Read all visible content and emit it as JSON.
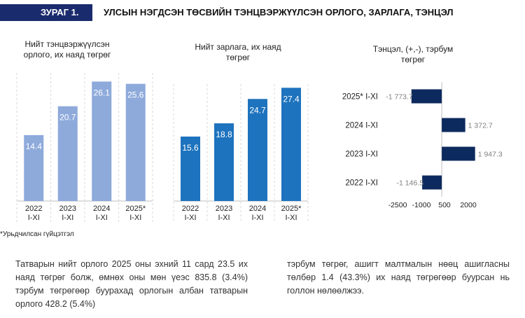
{
  "header": {
    "badge": "ЗУРАГ 1.",
    "title": "УЛСЫН НЭГДСЭН ТӨСВИЙН ТЭНЦВЭРЖҮҮЛСЭН ОРЛОГО, ЗАРЛАГА, ТЭНЦЭЛ"
  },
  "colors": {
    "badge_bg": "#1a2b6d",
    "revenue_bar": "#8eaadb",
    "expense_bar": "#1e73be",
    "balance_bar": "#0d2a5e",
    "value_label_light": "#ffffff",
    "gridline": "#d9d9d9"
  },
  "chart_data": [
    {
      "type": "bar",
      "title": "Нийт тэнцвэржүүлсэн орлого, их наяд төгрөг",
      "title_lines": [
        "Нийт тэнцвэржүүлсэн",
        "орлого, их наяд төгрөг"
      ],
      "categories": [
        "2022 I-XI",
        "2023 I-XI",
        "2024 I-XI",
        "2025* I-XI"
      ],
      "category_lines": [
        [
          "2022",
          "I-XI"
        ],
        [
          "2023",
          "I-XI"
        ],
        [
          "2024",
          "I-XI"
        ],
        [
          "2025*",
          "I-XI"
        ]
      ],
      "values": [
        14.4,
        20.7,
        26.1,
        25.6
      ],
      "value_labels": [
        "14.4",
        "20.7",
        "26.1",
        "25.6"
      ],
      "ylim": [
        0,
        28
      ]
    },
    {
      "type": "bar",
      "title": "Нийт зарлага, их наяд төгрөг",
      "title_lines": [
        "Нийт зарлага, их наяд",
        "төгрөг"
      ],
      "categories": [
        "2022 I-XI",
        "2023 I-XI",
        "2024 I-XI",
        "2025* I-XI"
      ],
      "category_lines": [
        [
          "2022",
          "I-XI"
        ],
        [
          "2023",
          "I-XI"
        ],
        [
          "2024",
          "I-XI"
        ],
        [
          "2025*",
          "I-XI"
        ]
      ],
      "values": [
        15.6,
        18.8,
        24.7,
        27.4
      ],
      "value_labels": [
        "15.6",
        "18.8",
        "24.7",
        "27.4"
      ],
      "ylim": [
        0,
        30
      ]
    },
    {
      "type": "bar",
      "orientation": "horizontal",
      "title": "Тэнцэл, (+,-), тэрбум төгрөг",
      "title_lines": [
        "Тэнцэл, (+,-), тэрбум",
        "төгрөг"
      ],
      "categories": [
        "2025* I-XI",
        "2024 I-XI",
        "2023 I-XI",
        "2022 I-XI"
      ],
      "values": [
        -1773.7,
        1372.7,
        1947.3,
        -1146.5
      ],
      "value_labels": [
        "-1 773.7",
        "1 372.7",
        "1 947.3",
        "-1 146.5"
      ],
      "xlim": [
        -2500,
        2000
      ],
      "xticks": [
        -2500,
        -1000,
        500,
        2000
      ],
      "xtick_labels": [
        "-2500",
        "-1000",
        "500",
        "2000"
      ]
    }
  ],
  "footnote": "*Урьдчилсан гүйцэтгэл",
  "body_text": {
    "left": "Татварын нийт орлого 2025 оны эхний 11 сард 23.5 их наяд төгрөг болж, өмнөх оны мөн үеэс 835.8 (3.4%) тэрбум төгрөгөөр буурахад орлогын албан татварын орлого 428.2 (5.4%)",
    "right": "тэрбум төгрөг, ашигт малтмалын нөөц ашигласны төлбөр 1.4 (43.3%) их наяд төгрөгөөр буурсан нь голлон нөлөөлжээ."
  }
}
